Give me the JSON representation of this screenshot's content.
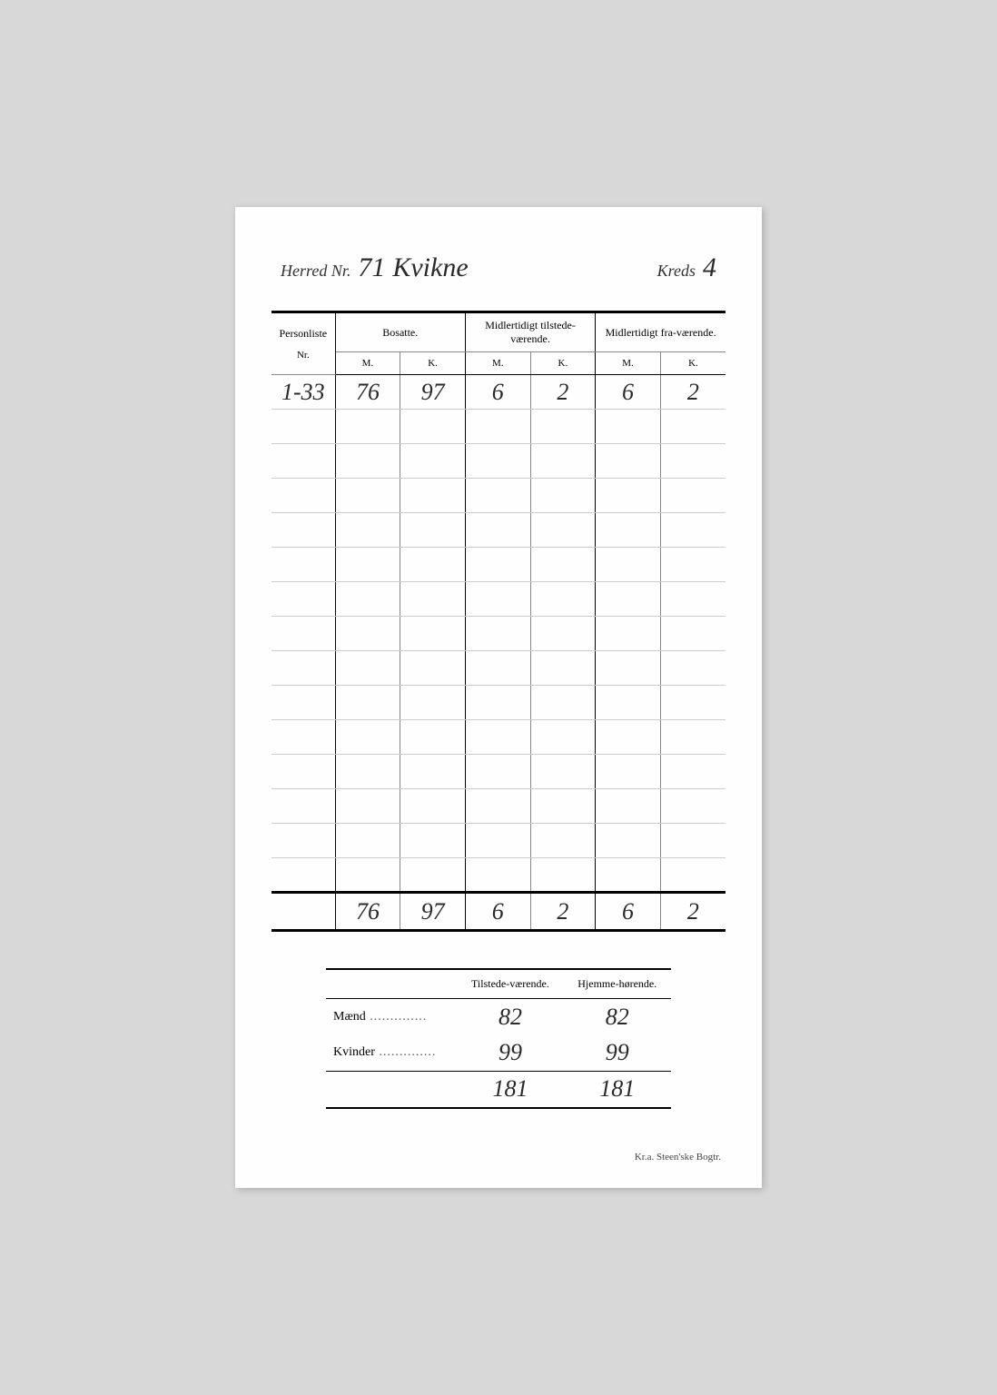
{
  "header": {
    "herred_label": "Herred Nr.",
    "herred_nr": "71",
    "herred_name": "Kvikne",
    "kreds_label": "Kreds",
    "kreds_nr": "4"
  },
  "main_table": {
    "group_headers": {
      "personliste": "Personliste",
      "bosatte": "Bosatte.",
      "midl_tilstede": "Midlertidigt tilstede-værende.",
      "midl_fra": "Midlertidigt fra-værende."
    },
    "sub_headers": {
      "nr": "Nr.",
      "m": "M.",
      "k": "K."
    },
    "rows": [
      {
        "nr": "1-33",
        "bos_m": "76",
        "bos_k": "97",
        "til_m": "6",
        "til_k": "2",
        "fra_m": "6",
        "fra_k": "2"
      }
    ],
    "empty_rows": 14,
    "totals": {
      "bos_m": "76",
      "bos_k": "97",
      "til_m": "6",
      "til_k": "2",
      "fra_m": "6",
      "fra_k": "2"
    }
  },
  "summary": {
    "col_tilstede": "Tilstede-værende.",
    "col_hjemme": "Hjemme-hørende.",
    "maend_label": "Mænd",
    "kvinder_label": "Kvinder",
    "maend": {
      "tilstede": "82",
      "hjemme": "82"
    },
    "kvinder": {
      "tilstede": "99",
      "hjemme": "99"
    },
    "total": {
      "tilstede": "181",
      "hjemme": "181"
    }
  },
  "footer": "Kr.a.   Steen'ske Bogtr.",
  "style": {
    "background": "#d8d8d8",
    "paper": "#fefefe",
    "ink": "#2a2a2a",
    "rule": "#000000"
  }
}
